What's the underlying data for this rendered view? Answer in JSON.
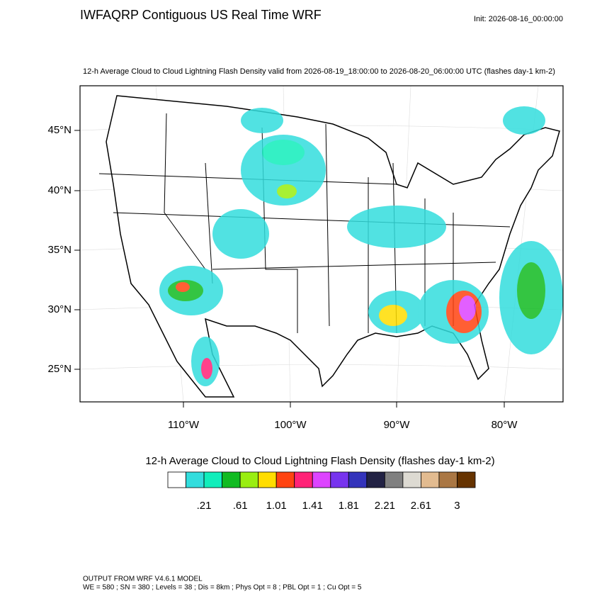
{
  "header": {
    "title": "IWFAQRP Contiguous US Real Time WRF",
    "init": "Init: 2026-08-16_00:00:00"
  },
  "plot": {
    "subtitle": "12-h Average Cloud to Cloud Lightning Flash Density valid from 2026-08-19_18:00:00 to 2026-08-20_06:00:00 UTC   (flashes day-1 km-2)",
    "lat_labels": [
      "45°N",
      "40°N",
      "35°N",
      "30°N",
      "25°N"
    ],
    "lon_labels": [
      "110°W",
      "100°W",
      "90°W",
      "80°W"
    ]
  },
  "colorbar": {
    "title": "12-h Average Cloud to Cloud Lightning Flash Density  (flashes day-1 km-2)",
    "colors": [
      "#ffffff",
      "#33dddd",
      "#11eebb",
      "#11bb22",
      "#99ee11",
      "#ffdd00",
      "#ff4411",
      "#ff2277",
      "#dd44ff",
      "#7733ee",
      "#3333bb",
      "#222244",
      "#808080",
      "#dddad2",
      "#e2bb90",
      "#aa7744",
      "#663300"
    ],
    "labels": [
      ".21",
      ".61",
      "1.01",
      "1.41",
      "1.81",
      "2.21",
      "2.61",
      "3"
    ]
  },
  "footer": {
    "line1": "OUTPUT FROM WRF V4.6.1 MODEL",
    "line2": "WE = 580 ; SN = 380 ; Levels = 38 ; Dis = 8km ; Phys Opt = 8 ; PBL Opt = 1 ; Cu Opt = 5"
  }
}
